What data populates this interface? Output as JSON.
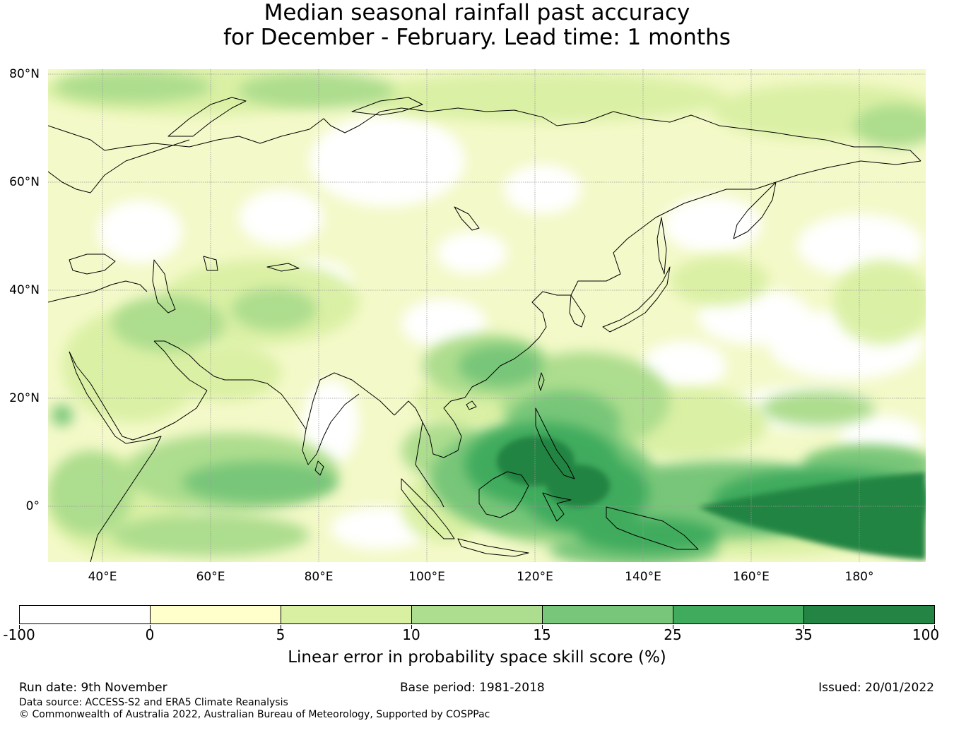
{
  "title": {
    "line1": "Median seasonal rainfall past accuracy",
    "line2": "for December - February. Lead time: 1 months"
  },
  "map": {
    "lat_labels": [
      "80°N",
      "60°N",
      "40°N",
      "20°N",
      "0°"
    ],
    "lon_labels": [
      "40°E",
      "60°E",
      "80°E",
      "100°E",
      "120°E",
      "140°E",
      "160°E",
      "180°"
    ],
    "colors": {
      "ocean_base": "#f3f9c8",
      "land_outline": "#000000",
      "grid": "#aaaaaa"
    }
  },
  "legend": {
    "tick_labels": [
      "-100",
      "0",
      "5",
      "10",
      "15",
      "25",
      "35",
      "100"
    ],
    "colors": [
      "#ffffff",
      "#ffffcc",
      "#d9f0a3",
      "#addd8e",
      "#78c679",
      "#41ab5d",
      "#238443"
    ],
    "title": "Linear error in probability space skill score (%)"
  },
  "footer": {
    "run_date": "Run date: 9th November",
    "base_period": "Base period: 1981-2018",
    "issued": "Issued: 20/01/2022",
    "data_source": "Data source: ACCESS-S2 and ERA5 Climate Reanalysis",
    "copyright": "© Commonwealth of Australia 2022, Australian Bureau of Meteorology, Supported by COSPPac"
  }
}
